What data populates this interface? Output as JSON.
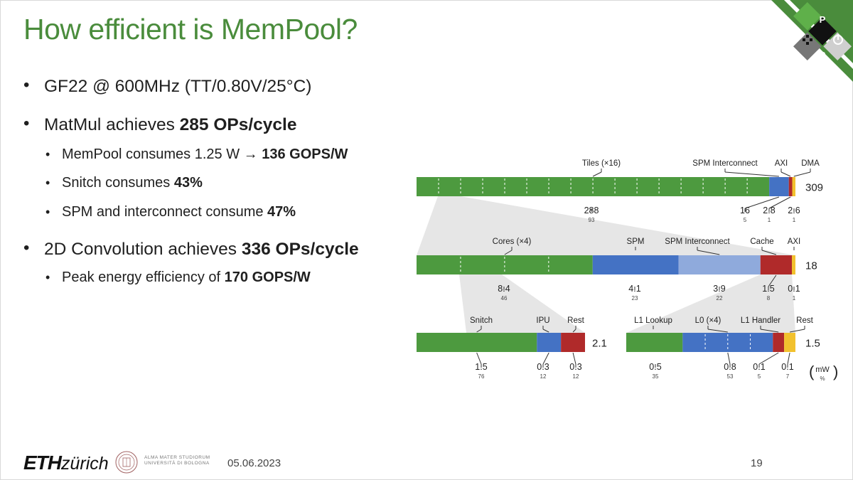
{
  "slide": {
    "title": "How efficient is MemPool?",
    "date": "05.06.2023",
    "page_number": "19"
  },
  "bullets": [
    {
      "level": 1,
      "text": "GF22 @ 600MHz (TT/0.80V/25°C)"
    },
    {
      "level": 1,
      "text": "MatMul achieves ",
      "bold": "285 OPs/cycle"
    },
    {
      "level": 2,
      "text": "MemPool consumes 1.25 W ",
      "arrow": "→",
      "bold": "136 GOPS/W"
    },
    {
      "level": 2,
      "text": "Snitch consumes ",
      "bold": "43%"
    },
    {
      "level": 2,
      "text": "SPM and interconnect consume ",
      "bold": "47%"
    },
    {
      "level": 1,
      "text": "2D Convolution achieves ",
      "bold": "336 OPs/cycle"
    },
    {
      "level": 2,
      "text": "Peak energy efficiency of ",
      "bold": "170 GOPS/W"
    }
  ],
  "footer": {
    "eth": "ETH",
    "zurich": "zürich",
    "unibo_line1": "ALMA MATER STUDIORUM",
    "unibo_line2": "UNIVERSITÀ DI BOLOGNA"
  },
  "colors": {
    "title_green": "#4a8c3c",
    "bar_green": "#4d9a3f",
    "bar_blue": "#4472c4",
    "bar_light_blue": "#8faadc",
    "bar_red": "#b02a2a",
    "bar_yellow": "#f2c12e",
    "funnel_grey": "#e6e6e6"
  },
  "chart_data": {
    "type": "bar",
    "unit_legend": {
      "top": "mW",
      "bottom": "%"
    },
    "rows": [
      {
        "name": "mempool",
        "total": "309",
        "labels_top": [
          "Tiles (×16)",
          "SPM Interconnect",
          "AXI",
          "DMA"
        ],
        "segments": [
          {
            "label": "Tiles (×16)",
            "mw": 288,
            "mw_text": "288",
            "pct": "93",
            "color": "green"
          },
          {
            "label": "SPM Interconnect",
            "mw": 16,
            "mw_text": "16",
            "pct": "5",
            "color": "blue"
          },
          {
            "label": "AXI",
            "mw": 2.8,
            "mw_text": "2.8",
            "pct": "1",
            "color": "red"
          },
          {
            "label": "DMA",
            "mw": 2.6,
            "mw_text": "2.6",
            "pct": "1",
            "color": "yellow"
          }
        ]
      },
      {
        "name": "tile",
        "total": "18",
        "segments": [
          {
            "label": "Cores (×4)",
            "mw": 8.4,
            "mw_text": "8.4",
            "pct": "46",
            "color": "green"
          },
          {
            "label": "SPM",
            "mw": 4.1,
            "mw_text": "4.1",
            "pct": "23",
            "color": "blue"
          },
          {
            "label": "SPM Interconnect",
            "mw": 3.9,
            "mw_text": "3.9",
            "pct": "22",
            "color": "light_blue"
          },
          {
            "label": "Cache",
            "mw": 1.5,
            "mw_text": "1.5",
            "pct": "8",
            "color": "red"
          },
          {
            "label": "AXI",
            "mw": 0.1,
            "mw_text": "0.1",
            "pct": "1",
            "color": "yellow"
          }
        ]
      },
      {
        "name": "core",
        "total": "2.1",
        "segments": [
          {
            "label": "Snitch",
            "mw": 1.5,
            "mw_text": "1.5",
            "pct": "76",
            "color": "green"
          },
          {
            "label": "IPU",
            "mw": 0.3,
            "mw_text": "0.3",
            "pct": "12",
            "color": "blue"
          },
          {
            "label": "Rest",
            "mw": 0.3,
            "mw_text": "0.3",
            "pct": "12",
            "color": "red"
          }
        ]
      },
      {
        "name": "cache",
        "total": "1.5",
        "segments": [
          {
            "label": "L1 Lookup",
            "mw": 0.5,
            "mw_text": "0.5",
            "pct": "35",
            "color": "green"
          },
          {
            "label": "L0 (×4)",
            "mw": 0.8,
            "mw_text": "0.8",
            "pct": "53",
            "color": "blue"
          },
          {
            "label": "L1 Handler",
            "mw": 0.1,
            "mw_text": "0.1",
            "pct": "5",
            "color": "red"
          },
          {
            "label": "Rest",
            "mw": 0.1,
            "mw_text": "0.1",
            "pct": "7",
            "color": "yellow"
          }
        ]
      }
    ]
  }
}
